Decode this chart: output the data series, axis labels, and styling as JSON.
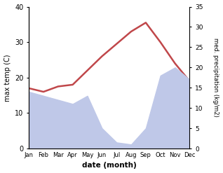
{
  "months": [
    "Jan",
    "Feb",
    "Mar",
    "Apr",
    "May",
    "Jun",
    "Jul",
    "Aug",
    "Sep",
    "Oct",
    "Nov",
    "Dec"
  ],
  "month_positions": [
    1,
    2,
    3,
    4,
    5,
    6,
    7,
    8,
    9,
    10,
    11,
    12
  ],
  "max_temp": [
    17.0,
    16.0,
    17.5,
    18.0,
    22.0,
    26.0,
    29.5,
    33.0,
    35.5,
    30.0,
    24.0,
    19.0
  ],
  "precipitation": [
    14.0,
    13.0,
    12.0,
    11.0,
    13.0,
    5.0,
    1.5,
    1.0,
    5.0,
    18.0,
    20.0,
    17.0
  ],
  "temp_color": "#c0474a",
  "precip_fill_color": "#bfc8e8",
  "temp_ylim": [
    0,
    40
  ],
  "precip_ylim": [
    0,
    35
  ],
  "temp_yticks": [
    0,
    10,
    20,
    30,
    40
  ],
  "precip_yticks": [
    0,
    5,
    10,
    15,
    20,
    25,
    30,
    35
  ],
  "ylabel_left": "max temp (C)",
  "ylabel_right": "med. precipitation (kg/m2)",
  "xlabel": "date (month)",
  "background_color": "#ffffff"
}
